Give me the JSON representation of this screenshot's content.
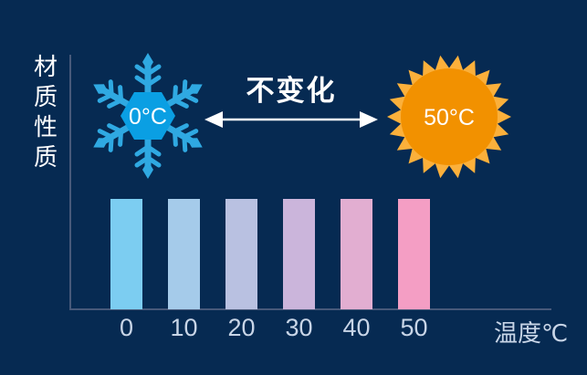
{
  "canvas": {
    "bg_color": "#062A52",
    "axis_color": "#47597A",
    "tick_color": "#C8D5E7",
    "text_color": "#FFFFFF"
  },
  "y_axis": {
    "label": "材质性质"
  },
  "x_axis": {
    "unit_label": "温度℃"
  },
  "snowflake": {
    "label": "0°C",
    "branch_color": "#2FA9E2",
    "core_color": "#0A9FE3"
  },
  "sun": {
    "label": "50°C",
    "ray_color": "#FBB03B",
    "core_color": "#F29100"
  },
  "arrow": {
    "label": "不变化",
    "color": "#FFFFFF"
  },
  "chart_data": {
    "type": "bar",
    "title": "",
    "xlabel": "温度℃",
    "ylabel": "材质性质",
    "categories": [
      "0",
      "10",
      "20",
      "30",
      "40",
      "50"
    ],
    "values": [
      1,
      1,
      1,
      1,
      1,
      1
    ],
    "ylim": [
      0,
      1
    ],
    "grid": false,
    "legend": false,
    "bar_colors": [
      "#7CCDF1",
      "#A5CBEA",
      "#B9C1E1",
      "#CBB5DB",
      "#E2AED1",
      "#F49EC4"
    ]
  }
}
